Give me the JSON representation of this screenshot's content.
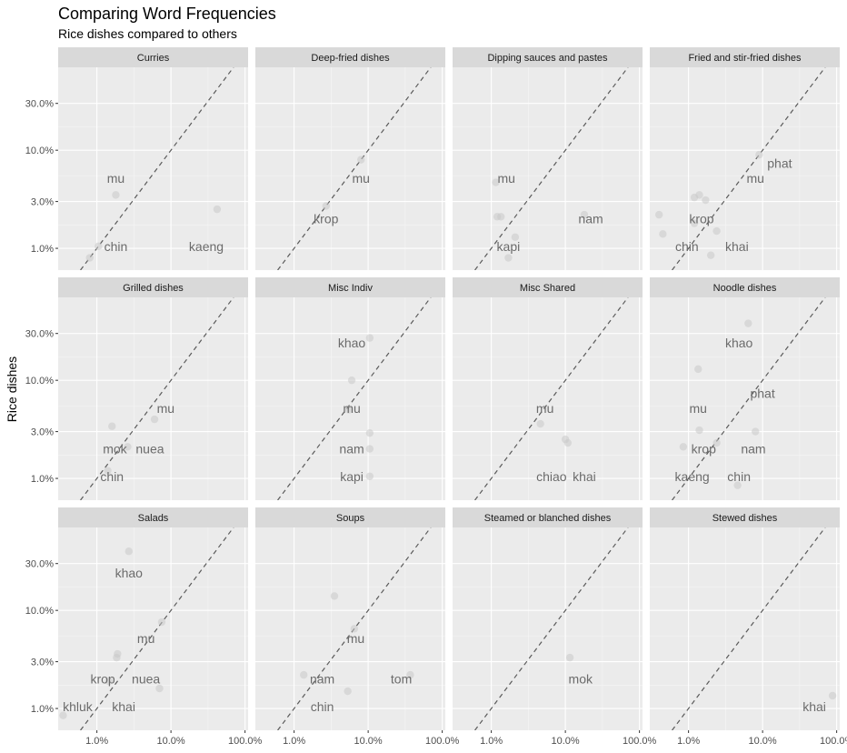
{
  "chart_data": {
    "type": "scatter",
    "title": "Comparing Word Frequencies",
    "subtitle": "Rice dishes compared to others",
    "ylabel": "Rice dishes",
    "xlabel": "",
    "x_scale": "log10",
    "y_scale": "log10",
    "xlim": [
      0.3,
      110
    ],
    "ylim": [
      0.6,
      70
    ],
    "x_ticks": [
      1,
      10,
      100
    ],
    "x_tick_labels": [
      "1.0%",
      "10.0%",
      "100.0%"
    ],
    "y_ticks": [
      1,
      3,
      10,
      30
    ],
    "y_tick_labels": [
      "1.0%",
      "3.0%",
      "10.0%",
      "30.0%"
    ],
    "reference_line": "y = x",
    "grid": true,
    "panels": [
      {
        "name": "Curries",
        "points": [
          {
            "x": 0.8,
            "y": 0.8
          },
          {
            "x": 1.8,
            "y": 3.5
          },
          {
            "x": 42,
            "y": 2.5
          },
          {
            "x": 1.05,
            "y": 1.05
          }
        ],
        "labels": [
          {
            "text": "mu",
            "x": 1.8,
            "y": 5.2
          },
          {
            "text": "chin",
            "x": 1.8,
            "y": 1.05
          },
          {
            "text": "kaeng",
            "x": 30,
            "y": 1.05
          }
        ]
      },
      {
        "name": "Deep-fried dishes",
        "points": [
          {
            "x": 8,
            "y": 8
          },
          {
            "x": 2.7,
            "y": 2.7
          }
        ],
        "labels": [
          {
            "text": "mu",
            "x": 8,
            "y": 5.2
          },
          {
            "text": "krop",
            "x": 2.7,
            "y": 2.0
          }
        ]
      },
      {
        "name": "Dipping sauces and pastes",
        "points": [
          {
            "x": 1.15,
            "y": 4.7
          },
          {
            "x": 1.2,
            "y": 2.1
          },
          {
            "x": 1.35,
            "y": 2.1
          },
          {
            "x": 2.1,
            "y": 1.3
          },
          {
            "x": 1.7,
            "y": 0.8
          },
          {
            "x": 18,
            "y": 2.2
          }
        ],
        "labels": [
          {
            "text": "mu",
            "x": 1.6,
            "y": 5.2
          },
          {
            "text": "nam",
            "x": 22,
            "y": 2.0
          },
          {
            "text": "kapi",
            "x": 1.7,
            "y": 1.05
          }
        ]
      },
      {
        "name": "Fried and stir-fried dishes",
        "points": [
          {
            "x": 0.4,
            "y": 2.2
          },
          {
            "x": 0.45,
            "y": 1.4
          },
          {
            "x": 1.2,
            "y": 3.3
          },
          {
            "x": 1.4,
            "y": 3.5
          },
          {
            "x": 1.7,
            "y": 3.1
          },
          {
            "x": 1.2,
            "y": 1.8
          },
          {
            "x": 2.4,
            "y": 1.5
          },
          {
            "x": 2.0,
            "y": 0.85
          },
          {
            "x": 9,
            "y": 9
          }
        ],
        "labels": [
          {
            "text": "phat",
            "x": 17,
            "y": 7.4
          },
          {
            "text": "mu",
            "x": 8,
            "y": 5.2
          },
          {
            "text": "krop",
            "x": 1.5,
            "y": 2.0
          },
          {
            "text": "chin",
            "x": 0.95,
            "y": 1.05
          },
          {
            "text": "khai",
            "x": 4.5,
            "y": 1.05
          }
        ]
      },
      {
        "name": "Grilled dishes",
        "points": [
          {
            "x": 1.6,
            "y": 3.4
          },
          {
            "x": 6,
            "y": 4.0
          },
          {
            "x": 2.6,
            "y": 2.1
          },
          {
            "x": 1.4,
            "y": 1.2
          }
        ],
        "labels": [
          {
            "text": "mu",
            "x": 8.5,
            "y": 5.2
          },
          {
            "text": "mok",
            "x": 1.75,
            "y": 2.0
          },
          {
            "text": "nuea",
            "x": 5.2,
            "y": 2.0
          },
          {
            "text": "chin",
            "x": 1.6,
            "y": 1.05
          }
        ]
      },
      {
        "name": "Misc Indiv",
        "points": [
          {
            "x": 10.5,
            "y": 27
          },
          {
            "x": 6,
            "y": 10
          },
          {
            "x": 10.5,
            "y": 2.9
          },
          {
            "x": 10.5,
            "y": 2.0
          },
          {
            "x": 10.5,
            "y": 1.05
          },
          {
            "x": 5.5,
            "y": 5.0
          }
        ],
        "labels": [
          {
            "text": "khao",
            "x": 6,
            "y": 24
          },
          {
            "text": "mu",
            "x": 6,
            "y": 5.2
          },
          {
            "text": "nam",
            "x": 6,
            "y": 2.0
          },
          {
            "text": "kapi",
            "x": 6,
            "y": 1.05
          }
        ]
      },
      {
        "name": "Misc Shared",
        "points": [
          {
            "x": 4.6,
            "y": 3.6
          },
          {
            "x": 10,
            "y": 2.5
          },
          {
            "x": 10.8,
            "y": 2.3
          }
        ],
        "labels": [
          {
            "text": "mu",
            "x": 5.3,
            "y": 5.2
          },
          {
            "text": "chiao",
            "x": 6.5,
            "y": 1.05
          },
          {
            "text": "khai",
            "x": 18,
            "y": 1.05
          }
        ]
      },
      {
        "name": "Noodle dishes",
        "points": [
          {
            "x": 6.4,
            "y": 38
          },
          {
            "x": 1.35,
            "y": 13
          },
          {
            "x": 1.4,
            "y": 3.1
          },
          {
            "x": 2.4,
            "y": 2.3
          },
          {
            "x": 0.85,
            "y": 2.1
          },
          {
            "x": 8,
            "y": 3.0
          },
          {
            "x": 4.6,
            "y": 0.85
          }
        ],
        "labels": [
          {
            "text": "khao",
            "x": 4.8,
            "y": 24
          },
          {
            "text": "phat",
            "x": 10,
            "y": 7.4
          },
          {
            "text": "mu",
            "x": 1.35,
            "y": 5.2
          },
          {
            "text": "krop",
            "x": 1.6,
            "y": 2.0
          },
          {
            "text": "nam",
            "x": 7.5,
            "y": 2.0
          },
          {
            "text": "kaeng",
            "x": 1.12,
            "y": 1.05
          },
          {
            "text": "chin",
            "x": 4.8,
            "y": 1.05
          }
        ]
      },
      {
        "name": "Salads",
        "points": [
          {
            "x": 2.7,
            "y": 40
          },
          {
            "x": 7.5,
            "y": 7.6
          },
          {
            "x": 1.9,
            "y": 3.6
          },
          {
            "x": 1.85,
            "y": 3.3
          },
          {
            "x": 1.45,
            "y": 1.9
          },
          {
            "x": 7.0,
            "y": 1.6
          },
          {
            "x": 0.35,
            "y": 0.85
          }
        ],
        "labels": [
          {
            "text": "khao",
            "x": 2.7,
            "y": 24
          },
          {
            "text": "mu",
            "x": 4.6,
            "y": 5.2
          },
          {
            "text": "krop",
            "x": 1.2,
            "y": 2.0
          },
          {
            "text": "nuea",
            "x": 4.6,
            "y": 2.0
          },
          {
            "text": "khluk",
            "x": 0.55,
            "y": 1.05
          },
          {
            "text": "khai",
            "x": 2.3,
            "y": 1.05
          }
        ]
      },
      {
        "name": "Soups",
        "points": [
          {
            "x": 3.5,
            "y": 14
          },
          {
            "x": 6.5,
            "y": 6.5
          },
          {
            "x": 1.35,
            "y": 2.2
          },
          {
            "x": 5.3,
            "y": 1.5
          },
          {
            "x": 37,
            "y": 2.2
          }
        ],
        "labels": [
          {
            "text": "mu",
            "x": 6.8,
            "y": 5.2
          },
          {
            "text": "nam",
            "x": 2.4,
            "y": 2.0
          },
          {
            "text": "tom",
            "x": 28,
            "y": 2.0
          },
          {
            "text": "chin",
            "x": 2.4,
            "y": 1.05
          }
        ]
      },
      {
        "name": "Steamed or blanched dishes",
        "points": [
          {
            "x": 11.5,
            "y": 3.3
          }
        ],
        "labels": [
          {
            "text": "mok",
            "x": 16,
            "y": 2.0
          }
        ]
      },
      {
        "name": "Stewed dishes",
        "points": [
          {
            "x": 88,
            "y": 1.35
          }
        ],
        "labels": [
          {
            "text": "khai",
            "x": 50,
            "y": 1.05
          }
        ]
      }
    ]
  }
}
